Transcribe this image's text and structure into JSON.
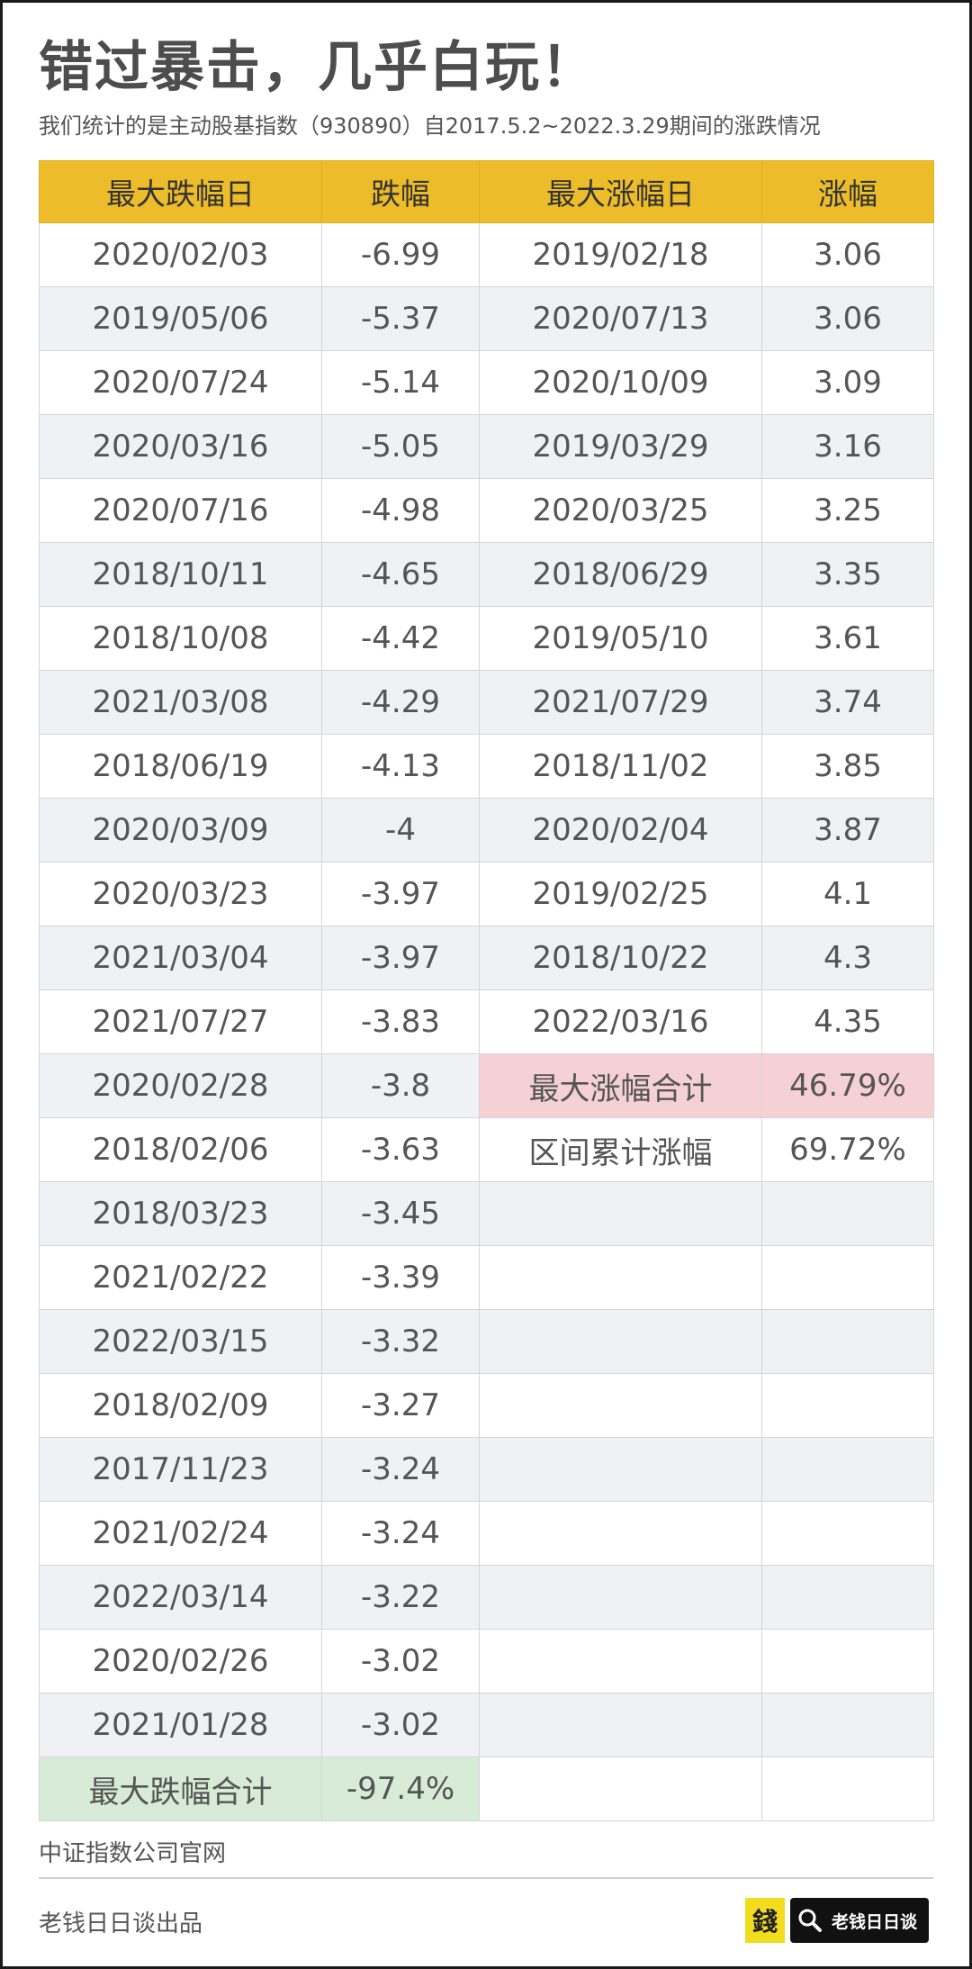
{
  "title": "错过暴击，几乎白玩！",
  "subtitle": "我们统计的是主动股基指数（930890）自2017.5.2~2022.3.29期间的涨跌情况",
  "table": {
    "headers": [
      "最大跌幅日",
      "跌幅",
      "最大涨幅日",
      "涨幅"
    ],
    "drops": [
      [
        "2020/02/03",
        "-6.99"
      ],
      [
        "2019/05/06",
        "-5.37"
      ],
      [
        "2020/07/24",
        "-5.14"
      ],
      [
        "2020/03/16",
        "-5.05"
      ],
      [
        "2020/07/16",
        "-4.98"
      ],
      [
        "2018/10/11",
        "-4.65"
      ],
      [
        "2018/10/08",
        "-4.42"
      ],
      [
        "2021/03/08",
        "-4.29"
      ],
      [
        "2018/06/19",
        "-4.13"
      ],
      [
        "2020/03/09",
        "-4"
      ],
      [
        "2020/03/23",
        "-3.97"
      ],
      [
        "2021/03/04",
        "-3.97"
      ],
      [
        "2021/07/27",
        "-3.83"
      ],
      [
        "2020/02/28",
        "-3.8"
      ],
      [
        "2018/02/06",
        "-3.63"
      ],
      [
        "2018/03/23",
        "-3.45"
      ],
      [
        "2021/02/22",
        "-3.39"
      ],
      [
        "2022/03/15",
        "-3.32"
      ],
      [
        "2018/02/09",
        "-3.27"
      ],
      [
        "2017/11/23",
        "-3.24"
      ],
      [
        "2021/02/24",
        "-3.24"
      ],
      [
        "2022/03/14",
        "-3.22"
      ],
      [
        "2020/02/26",
        "-3.02"
      ],
      [
        "2021/01/28",
        "-3.02"
      ]
    ],
    "rises": [
      [
        "2019/02/18",
        "3.06"
      ],
      [
        "2020/07/13",
        "3.06"
      ],
      [
        "2020/10/09",
        "3.09"
      ],
      [
        "2019/03/29",
        "3.16"
      ],
      [
        "2020/03/25",
        "3.25"
      ],
      [
        "2018/06/29",
        "3.35"
      ],
      [
        "2019/05/10",
        "3.61"
      ],
      [
        "2021/07/29",
        "3.74"
      ],
      [
        "2018/11/02",
        "3.85"
      ],
      [
        "2020/02/04",
        "3.87"
      ],
      [
        "2019/02/25",
        "4.1"
      ],
      [
        "2018/10/22",
        "4.3"
      ],
      [
        "2022/03/16",
        "4.35"
      ]
    ],
    "rise_total_label": "最大涨幅合计",
    "rise_total_value": "46.79%",
    "cumulative_label": "区间累计涨幅",
    "cumulative_value": "69.72%",
    "drop_total_label": "最大跌幅合计",
    "drop_total_value": "-97.4%"
  },
  "source": "中证指数公司官网",
  "brand": "老钱日日谈出品",
  "logo": {
    "mark": "錢",
    "text": "老钱日日谈",
    "icon": "search-icon"
  },
  "colors": {
    "header": "#ecbc2a",
    "alt_row": "#f0f1f5",
    "drop_total": "#d8ebd6",
    "rise_total": "#f5d0d5"
  }
}
